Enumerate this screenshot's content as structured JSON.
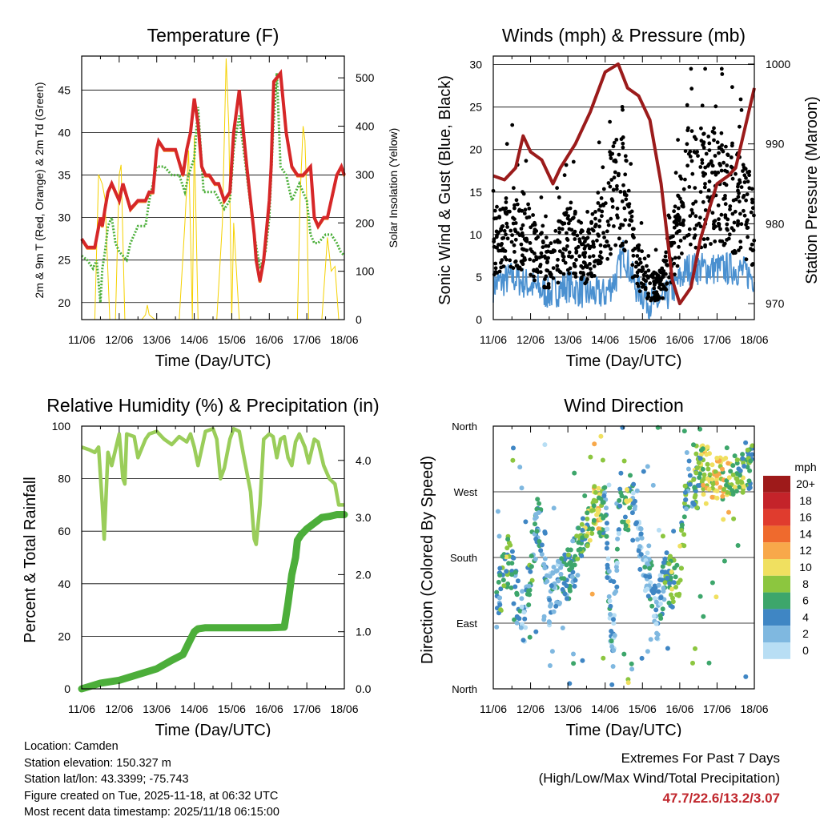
{
  "chart_data": [
    {
      "type": "line",
      "title": "Temperature (F)",
      "xlabel": "Time (Day/UTC)",
      "ylabel": "2m & 9m T (Red, Orange) & 2m Td (Green)",
      "y2label": "Solar Insolation (Yellow)",
      "ylim": [
        18,
        49
      ],
      "yticks": [
        20,
        25,
        30,
        35,
        40,
        45
      ],
      "y2lim": [
        0,
        545
      ],
      "y2ticks": [
        0,
        100,
        200,
        300,
        400,
        500
      ],
      "xticks": [
        "11/06",
        "12/06",
        "13/06",
        "14/06",
        "15/06",
        "16/06",
        "17/06",
        "18/06"
      ],
      "colors": {
        "t2m": "#d62728",
        "t9m": "#f08020",
        "td": "#4caf3a",
        "solar": "#f5d100"
      },
      "series": [
        {
          "name": "2m T",
          "x": [
            0,
            0.15,
            0.35,
            0.5,
            0.55,
            0.62,
            0.7,
            0.8,
            0.9,
            1.0,
            1.1,
            1.3,
            1.5,
            1.7,
            1.8,
            1.9,
            2.0,
            2.05,
            2.2,
            2.3,
            2.5,
            2.7,
            2.8,
            2.9,
            3.0,
            3.1,
            3.2,
            3.3,
            3.4,
            3.55,
            3.65,
            3.8,
            3.95,
            4.05,
            4.2,
            4.4,
            4.6,
            4.65,
            4.75,
            4.85,
            5.0,
            5.05,
            5.12,
            5.3,
            5.45,
            5.6,
            5.75,
            5.9,
            6.1,
            6.2,
            6.3,
            6.45,
            6.55,
            6.65,
            6.8,
            6.92,
            7.0
          ],
          "values": [
            27.5,
            26.5,
            26.5,
            30,
            29,
            31,
            33,
            34,
            33,
            32,
            34,
            31,
            32,
            32,
            33,
            33,
            38,
            39,
            38,
            38,
            38,
            35,
            38,
            40,
            44,
            41,
            36,
            35,
            35,
            34,
            34,
            32,
            33,
            40,
            45,
            36,
            28,
            25,
            22.5,
            25,
            32,
            36,
            46,
            47,
            40,
            36,
            35,
            35,
            36,
            30,
            29,
            30,
            30,
            32,
            35,
            36,
            35
          ]
        },
        {
          "name": "2m Td",
          "x": [
            0,
            0.15,
            0.3,
            0.4,
            0.5,
            0.55,
            0.62,
            0.7,
            0.8,
            0.9,
            1.0,
            1.2,
            1.3,
            1.5,
            1.7,
            1.8,
            2.0,
            2.2,
            2.4,
            2.6,
            2.75,
            2.85,
            3.0,
            3.1,
            3.25,
            3.4,
            3.55,
            3.8,
            3.95,
            4.05,
            4.2,
            4.4,
            4.6,
            4.75,
            4.9,
            5.0,
            5.1,
            5.2,
            5.3,
            5.45,
            5.6,
            5.8,
            6.0,
            6.1,
            6.2,
            6.3,
            6.5,
            6.65,
            6.8,
            6.9,
            7.0
          ],
          "values": [
            25.5,
            25,
            24,
            25,
            20,
            24,
            26,
            29,
            30,
            27,
            26,
            25,
            27,
            29,
            29,
            32,
            36,
            36,
            35,
            35,
            33,
            35,
            37,
            43,
            33,
            33,
            33,
            31,
            32,
            38,
            42,
            35,
            28,
            24,
            26,
            30,
            40,
            47,
            36,
            35,
            32,
            34,
            32,
            28,
            27,
            27,
            28,
            28,
            27,
            26,
            25.5
          ]
        },
        {
          "name": "Solar",
          "x": [
            0,
            0.35,
            0.45,
            0.55,
            0.62,
            0.75,
            0.9,
            1.0,
            1.05,
            1.15,
            1.6,
            1.7,
            1.75,
            1.8,
            1.95,
            2.3,
            2.6,
            2.75,
            2.85,
            2.9,
            2.95,
            3.0,
            3.05,
            3.1,
            3.6,
            3.75,
            3.85,
            3.92,
            4.0,
            4.05,
            4.2,
            5.45,
            5.75,
            5.82,
            5.9,
            5.95,
            6.0,
            6.05,
            6.4,
            6.55,
            6.65,
            6.75,
            6.85,
            7.0
          ],
          "values": [
            0,
            0,
            300,
            280,
            250,
            0,
            0,
            300,
            320,
            0,
            0,
            10,
            30,
            10,
            0,
            0,
            0,
            200,
            350,
            180,
            0,
            380,
            200,
            0,
            0,
            200,
            540,
            400,
            0,
            200,
            0,
            0,
            0,
            250,
            400,
            370,
            250,
            0,
            0,
            170,
            100,
            110,
            0,
            0
          ]
        }
      ]
    },
    {
      "type": "scatter",
      "title": "Winds (mph) & Pressure (mb)",
      "xlabel": "Time (Day/UTC)",
      "ylabel": "Sonic Wind & Gust (Blue, Black)",
      "y2label": "Station Pressure (Maroon)",
      "ylim": [
        0,
        31
      ],
      "yticks": [
        0,
        5,
        10,
        15,
        20,
        25,
        30
      ],
      "y2lim": [
        968,
        1001
      ],
      "y2ticks": [
        970,
        980,
        990,
        1000
      ],
      "xticks": [
        "11/06",
        "12/06",
        "13/06",
        "14/06",
        "15/06",
        "16/06",
        "17/06",
        "18/06"
      ],
      "colors": {
        "wind": "#4a90d0",
        "gust": "#000000",
        "pressure": "#9b1b1b"
      },
      "series": [
        {
          "name": "Wind",
          "x": [
            0,
            0.5,
            1.0,
            1.5,
            2.0,
            2.5,
            3.0,
            3.3,
            3.5,
            3.8,
            4.2,
            4.5,
            4.9,
            5.2,
            5.5,
            6.0,
            6.5,
            7.0
          ],
          "values": [
            4,
            5,
            4,
            3,
            4,
            3,
            3,
            5,
            8,
            4,
            2,
            2,
            4,
            6,
            6,
            6,
            6,
            5
          ]
        },
        {
          "name": "Gust",
          "x": [
            0,
            0.5,
            1.0,
            1.5,
            2.0,
            2.5,
            3.0,
            3.3,
            3.5,
            3.8,
            4.2,
            4.5,
            4.9,
            5.2,
            5.5,
            6.0,
            6.5,
            7.0
          ],
          "values": [
            9,
            11,
            9,
            6,
            10,
            7,
            12,
            15,
            15,
            7,
            4,
            4,
            9,
            16,
            15,
            16,
            14,
            11
          ]
        },
        {
          "name": "Pressure",
          "x": [
            0,
            0.3,
            0.6,
            0.8,
            1.0,
            1.3,
            1.6,
            1.8,
            2.2,
            2.6,
            3.0,
            3.35,
            3.6,
            3.9,
            4.2,
            4.5,
            4.8,
            5.0,
            5.3,
            5.55,
            5.8,
            6.0,
            6.3,
            6.5,
            6.7,
            7.0
          ],
          "values": [
            986,
            985.5,
            987,
            991,
            989,
            988,
            985,
            987,
            990,
            994,
            999,
            1000,
            997,
            996,
            993,
            985,
            973,
            970,
            972,
            978,
            982,
            985,
            986,
            987,
            991,
            997
          ]
        }
      ]
    },
    {
      "type": "line",
      "title": "Relative Humidity (%) & Precipitation (in)",
      "xlabel": "Time (Day/UTC)",
      "ylabel": "Percent & Total Rainfall",
      "ylim": [
        0,
        100
      ],
      "yticks": [
        0,
        20,
        40,
        60,
        80,
        100
      ],
      "y2lim": [
        0,
        4.6
      ],
      "y2ticks": [
        0.0,
        1.0,
        2.0,
        3.0,
        4.0
      ],
      "y2ticklabels": [
        "0.0",
        "1.0",
        "2.0",
        "3.0",
        "4.0"
      ],
      "xticks": [
        "11/06",
        "12/06",
        "13/06",
        "14/06",
        "15/06",
        "16/06",
        "17/06",
        "18/06"
      ],
      "colors": {
        "rh": "#9acd5a",
        "precip": "#4cae3a"
      },
      "series": [
        {
          "name": "RH",
          "x": [
            0,
            0.2,
            0.35,
            0.45,
            0.55,
            0.6,
            0.7,
            0.8,
            1.0,
            1.1,
            1.15,
            1.2,
            1.4,
            1.5,
            1.7,
            1.8,
            2.0,
            2.2,
            2.4,
            2.6,
            2.8,
            2.9,
            3.0,
            3.1,
            3.3,
            3.5,
            3.6,
            3.7,
            3.8,
            3.95,
            4.05,
            4.2,
            4.3,
            4.5,
            4.6,
            4.65,
            4.75,
            4.85,
            5.0,
            5.1,
            5.2,
            5.3,
            5.4,
            5.5,
            5.6,
            5.7,
            5.8,
            5.95,
            6.05,
            6.2,
            6.3,
            6.45,
            6.6,
            6.75,
            6.85,
            7.0
          ],
          "values": [
            92,
            91,
            90,
            92,
            70,
            57,
            90,
            85,
            97,
            80,
            78,
            97,
            96,
            88,
            95,
            97,
            98,
            95,
            93,
            96,
            94,
            97,
            92,
            85,
            98,
            99,
            95,
            80,
            84,
            95,
            99,
            98,
            90,
            75,
            57,
            55,
            70,
            95,
            97,
            96,
            88,
            95,
            96,
            88,
            85,
            94,
            97,
            92,
            86,
            95,
            94,
            85,
            80,
            78,
            70,
            70
          ]
        },
        {
          "name": "Precipitation",
          "x": [
            0,
            0.5,
            1.0,
            1.5,
            2.0,
            2.4,
            2.7,
            2.85,
            3.0,
            3.1,
            3.3,
            3.5,
            4.0,
            5.0,
            5.4,
            5.5,
            5.6,
            5.7,
            5.75,
            5.85,
            6.0,
            6.2,
            6.4,
            6.6,
            6.8,
            7.0
          ],
          "values": [
            0,
            0.1,
            0.15,
            0.25,
            0.35,
            0.5,
            0.6,
            0.8,
            1.0,
            1.05,
            1.07,
            1.07,
            1.07,
            1.07,
            1.08,
            1.5,
            2.0,
            2.3,
            2.6,
            2.7,
            2.8,
            2.9,
            3.0,
            3.02,
            3.05,
            3.05
          ]
        }
      ]
    },
    {
      "type": "scatter",
      "title": "Wind Direction",
      "xlabel": "Time (Day/UTC)",
      "ylabel": "Direction (Colored By Speed)",
      "yticklabels": [
        "North",
        "West",
        "South",
        "East",
        "North"
      ],
      "ylim": [
        0,
        360
      ],
      "xticks": [
        "11/06",
        "12/06",
        "13/06",
        "14/06",
        "15/06",
        "16/06",
        "17/06",
        "18/06"
      ],
      "colorbar": {
        "title": "mph",
        "labels": [
          "20+",
          "18",
          "16",
          "14",
          "12",
          "10",
          "8",
          "6",
          "4",
          "2",
          "0"
        ],
        "colors": [
          "#9e1a1a",
          "#c4232a",
          "#e03c2e",
          "#ef6a2d",
          "#f8a84a",
          "#f0e060",
          "#8cc63f",
          "#3da66b",
          "#3f86c4",
          "#7fb8e0",
          "#b8def4"
        ]
      },
      "series": [
        {
          "name": "Direction",
          "x": [
            0.1,
            0.4,
            0.7,
            0.85,
            1.0,
            1.2,
            1.35,
            1.5,
            1.7,
            2.0,
            2.2,
            2.4,
            2.6,
            2.8,
            3.0,
            3.2,
            3.4,
            3.6,
            3.8,
            4.0,
            4.2,
            4.4,
            4.6,
            4.8,
            5.0,
            5.2,
            5.4,
            5.6,
            5.8,
            6.0,
            6.2,
            6.4,
            6.6,
            6.8,
            7.0
          ],
          "values": [
            115,
            180,
            110,
            90,
            170,
            230,
            200,
            120,
            140,
            155,
            180,
            200,
            235,
            250,
            245,
            40,
            265,
            250,
            270,
            170,
            160,
            100,
            155,
            145,
            160,
            280,
            270,
            300,
            295,
            290,
            295,
            300,
            300,
            305,
            300
          ],
          "speed": [
            4,
            7,
            3,
            2,
            5,
            4,
            3,
            2,
            3,
            5,
            4,
            6,
            9,
            10,
            4,
            2,
            3,
            9,
            2,
            2,
            3,
            2,
            5,
            7,
            8,
            4,
            6,
            8,
            9,
            10,
            9,
            8,
            7,
            6,
            5
          ]
        }
      ]
    }
  ],
  "info": {
    "location": "Location: Camden",
    "elevation": "Station elevation: 150.327 m",
    "latlon": "Station lat/lon: 43.3399; -75.743",
    "created": "Figure created on Tue, 2025-11-18, at 06:32 UTC",
    "recent": "Most recent data timestamp: 2025/11/18 06:15:00"
  },
  "extremes": {
    "line1": "Extremes For Past 7 Days",
    "line2": "(High/Low/Max Wind/Total Precipitation)",
    "values": "47.7/22.6/13.2/3.07"
  }
}
